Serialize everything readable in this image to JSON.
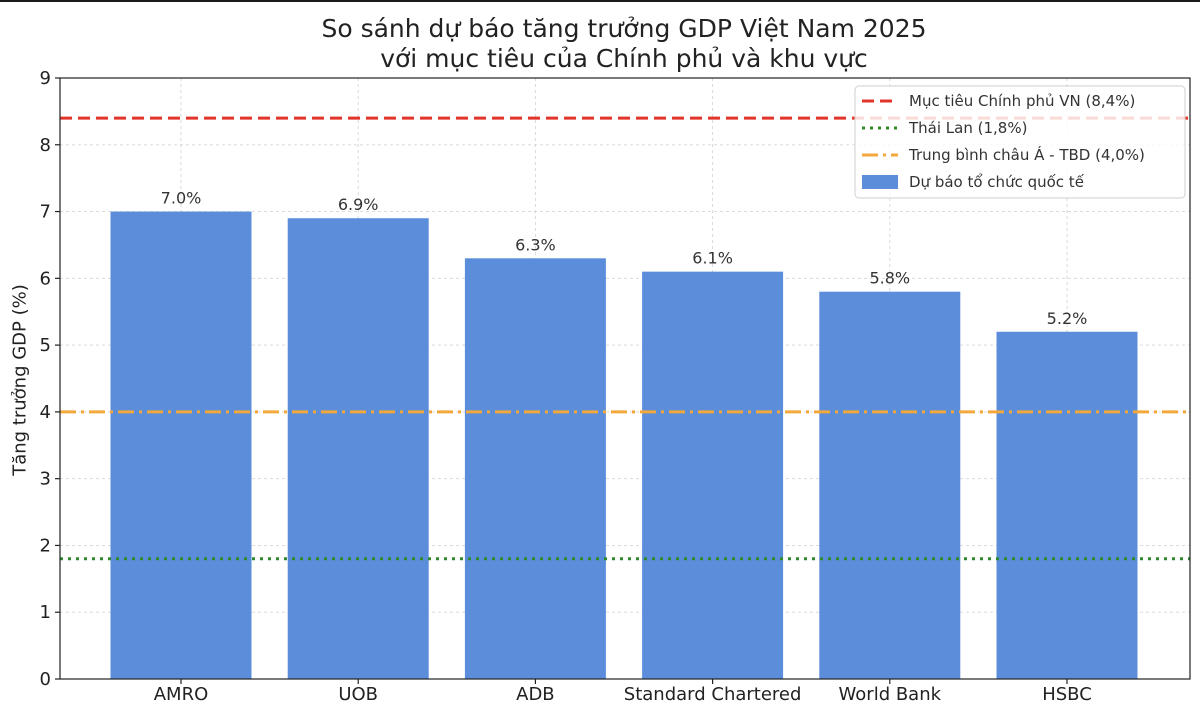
{
  "chart_data": {
    "type": "bar",
    "title": [
      "So sánh dự báo tăng trưởng GDP Việt Nam 2025",
      "với mục tiêu của Chính phủ và khu vực"
    ],
    "ylabel": "Tăng trưởng GDP (%)",
    "ylim": [
      0,
      9
    ],
    "yticks": [
      0,
      1,
      2,
      3,
      4,
      5,
      6,
      7,
      8,
      9
    ],
    "grid": true,
    "legend": "top-right",
    "bar_color": "#5b8ddb",
    "categories": [
      "AMRO",
      "UOB",
      "ADB",
      "Standard Chartered",
      "World Bank",
      "HSBC"
    ],
    "series": [
      {
        "name": "Dự báo tổ chức quốc tế",
        "values": [
          7.0,
          6.9,
          6.3,
          6.1,
          5.8,
          5.2
        ]
      }
    ],
    "value_labels": [
      "7.0%",
      "6.9%",
      "6.3%",
      "6.1%",
      "5.8%",
      "5.2%"
    ],
    "reference_lines": [
      {
        "name": "Mục tiêu Chính phủ VN (8,4%)",
        "value": 8.4,
        "style": "dashed",
        "color": "#e3342b"
      },
      {
        "name": "Thái Lan (1,8%)",
        "value": 1.8,
        "style": "dotted",
        "color": "#2d8a2d"
      },
      {
        "name": "Trung bình châu Á - TBD (4,0%)",
        "value": 4.0,
        "style": "dash-dot",
        "color": "#f2a83a"
      }
    ]
  }
}
